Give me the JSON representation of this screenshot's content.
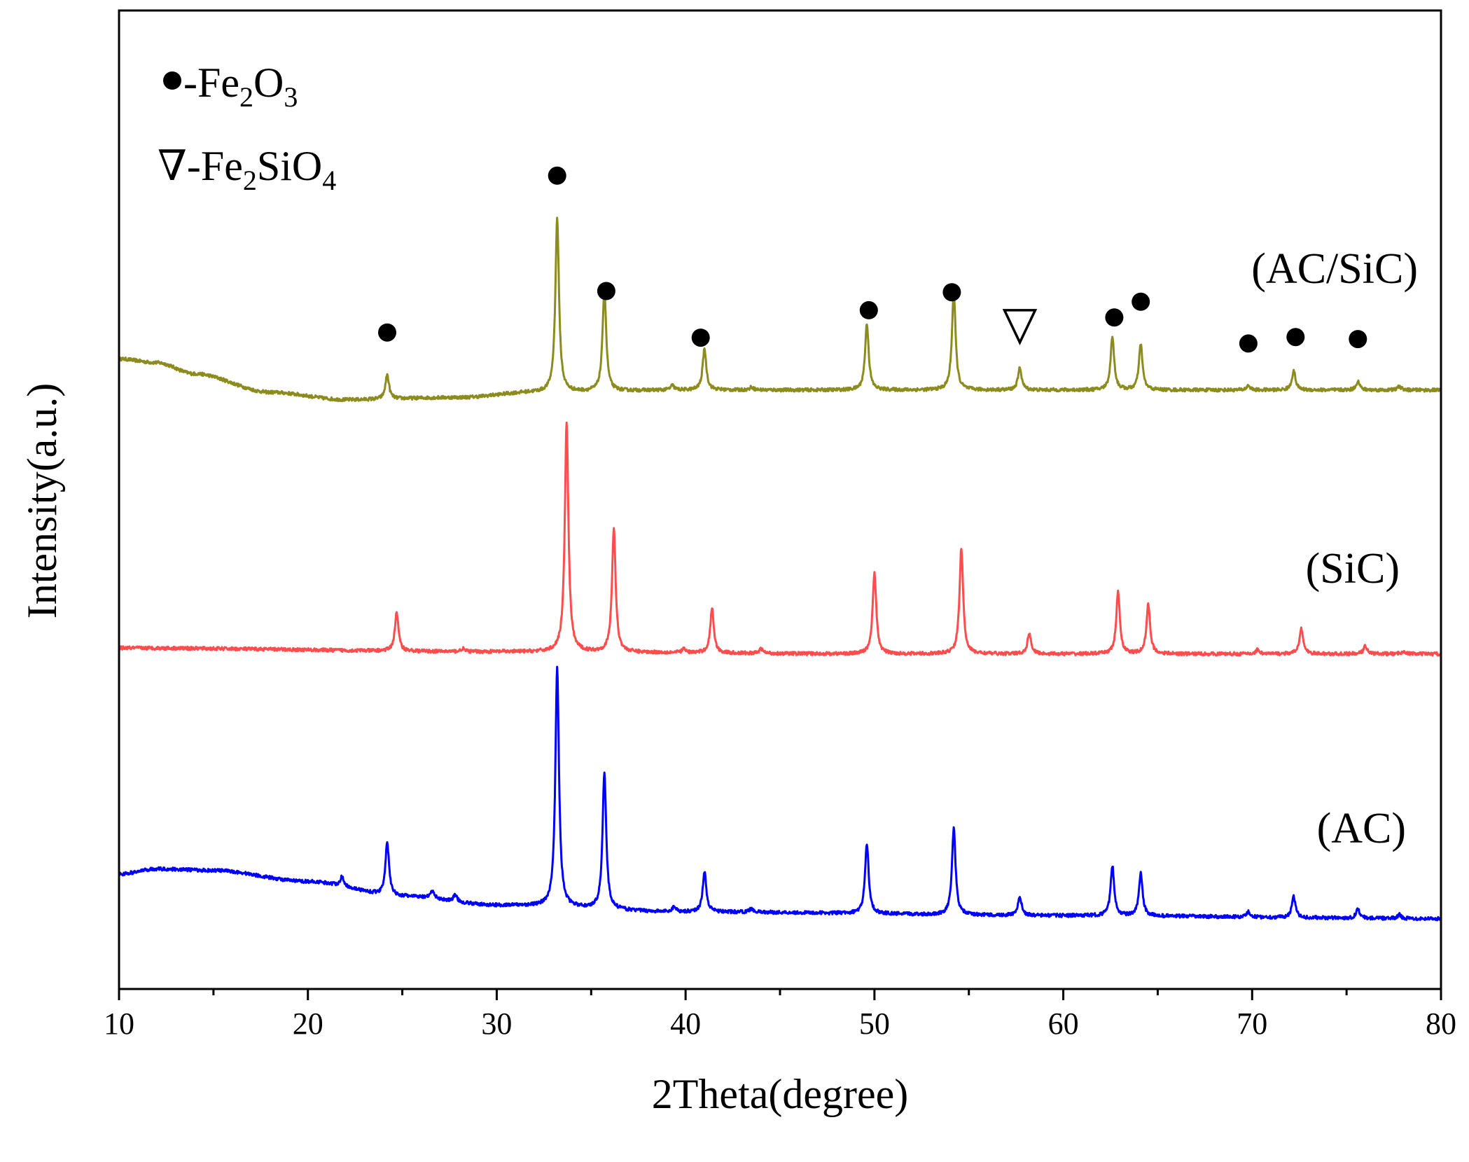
{
  "chart_data": {
    "type": "line",
    "title": "",
    "xlabel": "2Theta(degree)",
    "ylabel": "Intensity(a.u.)",
    "xlim": [
      10,
      80
    ],
    "ylim": [
      0,
      13.2
    ],
    "xticks": [
      "10",
      "20",
      "30",
      "40",
      "50",
      "60",
      "70",
      "80"
    ],
    "grid": false,
    "legend": {
      "position": "top-left",
      "entries": [
        {
          "symbol": "●",
          "text": "-Fe",
          "sub1": "2",
          "text2": "O",
          "sub2": "3"
        },
        {
          "symbol": "∇",
          "text": "-Fe",
          "sub1": "2",
          "text2": "SiO",
          "sub2": "4"
        }
      ]
    },
    "series": [
      {
        "name": "(AC/SiC)",
        "color": "#8c8c1e",
        "baseline": [
          [
            10,
            8.5
          ],
          [
            12,
            8.45
          ],
          [
            14,
            8.3
          ],
          [
            18,
            8.05
          ],
          [
            22,
            7.95
          ],
          [
            28,
            7.98
          ],
          [
            32,
            8.05
          ],
          [
            40,
            8.08
          ],
          [
            80,
            8.08
          ]
        ],
        "peaks": [
          [
            24.2,
            0.33
          ],
          [
            33.2,
            2.35
          ],
          [
            35.7,
            1.38
          ],
          [
            39.3,
            0.06
          ],
          [
            41.0,
            0.56
          ],
          [
            43.5,
            0.04
          ],
          [
            49.6,
            0.9
          ],
          [
            54.2,
            1.33
          ],
          [
            57.7,
            0.3
          ],
          [
            62.6,
            0.72
          ],
          [
            64.1,
            0.62
          ],
          [
            69.8,
            0.06
          ],
          [
            72.2,
            0.26
          ],
          [
            75.6,
            0.12
          ],
          [
            77.8,
            0.05
          ]
        ],
        "markers": [
          {
            "x": 24.2,
            "symbol": "circle"
          },
          {
            "x": 33.2,
            "symbol": "circle"
          },
          {
            "x": 35.8,
            "symbol": "circle"
          },
          {
            "x": 40.8,
            "symbol": "circle"
          },
          {
            "x": 49.7,
            "symbol": "circle"
          },
          {
            "x": 54.1,
            "symbol": "circle"
          },
          {
            "x": 57.7,
            "symbol": "triangle"
          },
          {
            "x": 62.7,
            "symbol": "circle"
          },
          {
            "x": 64.1,
            "symbol": "circle"
          },
          {
            "x": 69.8,
            "symbol": "circle"
          },
          {
            "x": 72.3,
            "symbol": "circle"
          },
          {
            "x": 75.6,
            "symbol": "circle"
          }
        ]
      },
      {
        "name": "(SiC)",
        "color": "#ff4c4c",
        "baseline": [
          [
            10,
            4.6
          ],
          [
            30,
            4.55
          ],
          [
            50,
            4.52
          ],
          [
            80,
            4.52
          ]
        ],
        "peaks": [
          [
            24.7,
            0.52
          ],
          [
            28.2,
            0.04
          ],
          [
            33.7,
            3.08
          ],
          [
            36.2,
            1.67
          ],
          [
            39.9,
            0.05
          ],
          [
            41.4,
            0.6
          ],
          [
            44.0,
            0.06
          ],
          [
            50.0,
            1.1
          ],
          [
            54.6,
            1.43
          ],
          [
            58.2,
            0.28
          ],
          [
            62.9,
            0.83
          ],
          [
            64.5,
            0.67
          ],
          [
            70.3,
            0.06
          ],
          [
            72.6,
            0.35
          ],
          [
            76.0,
            0.11
          ],
          [
            78.0,
            0.04
          ]
        ],
        "markers": []
      },
      {
        "name": "(AC)",
        "color": "#0000ff",
        "baseline": [
          [
            10,
            1.55
          ],
          [
            12,
            1.62
          ],
          [
            15,
            1.6
          ],
          [
            20,
            1.45
          ],
          [
            25,
            1.25
          ],
          [
            30,
            1.13
          ],
          [
            40,
            1.04
          ],
          [
            60,
            0.99
          ],
          [
            80,
            0.95
          ]
        ],
        "peaks": [
          [
            21.8,
            0.12
          ],
          [
            24.2,
            0.73
          ],
          [
            26.6,
            0.1
          ],
          [
            27.8,
            0.09
          ],
          [
            33.2,
            3.23
          ],
          [
            35.7,
            1.85
          ],
          [
            39.4,
            0.07
          ],
          [
            41.0,
            0.54
          ],
          [
            43.5,
            0.05
          ],
          [
            49.6,
            0.95
          ],
          [
            54.2,
            1.17
          ],
          [
            57.7,
            0.25
          ],
          [
            62.6,
            0.67
          ],
          [
            64.1,
            0.57
          ],
          [
            69.8,
            0.07
          ],
          [
            72.2,
            0.28
          ],
          [
            75.6,
            0.13
          ],
          [
            77.8,
            0.05
          ]
        ],
        "markers": []
      }
    ]
  }
}
